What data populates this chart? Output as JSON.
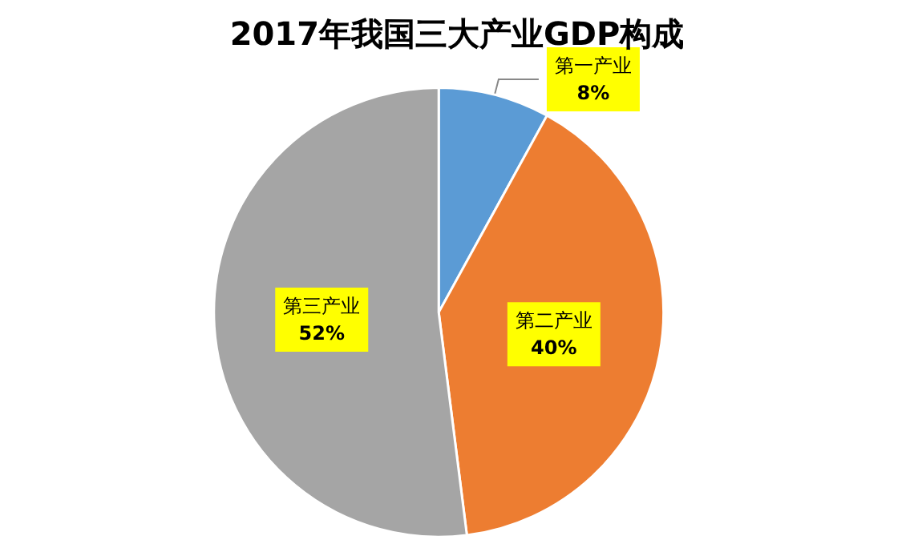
{
  "chart_data": {
    "type": "pie",
    "title": "2017年我国三大产业GDP构成",
    "categories": [
      "第一产业",
      "第二产业",
      "第三产业"
    ],
    "values": [
      8,
      40,
      52
    ],
    "value_labels": [
      "8%",
      "40%",
      "52%"
    ],
    "colors": [
      "#5b9bd5",
      "#ed7d31",
      "#a5a5a5"
    ],
    "legend": false
  }
}
